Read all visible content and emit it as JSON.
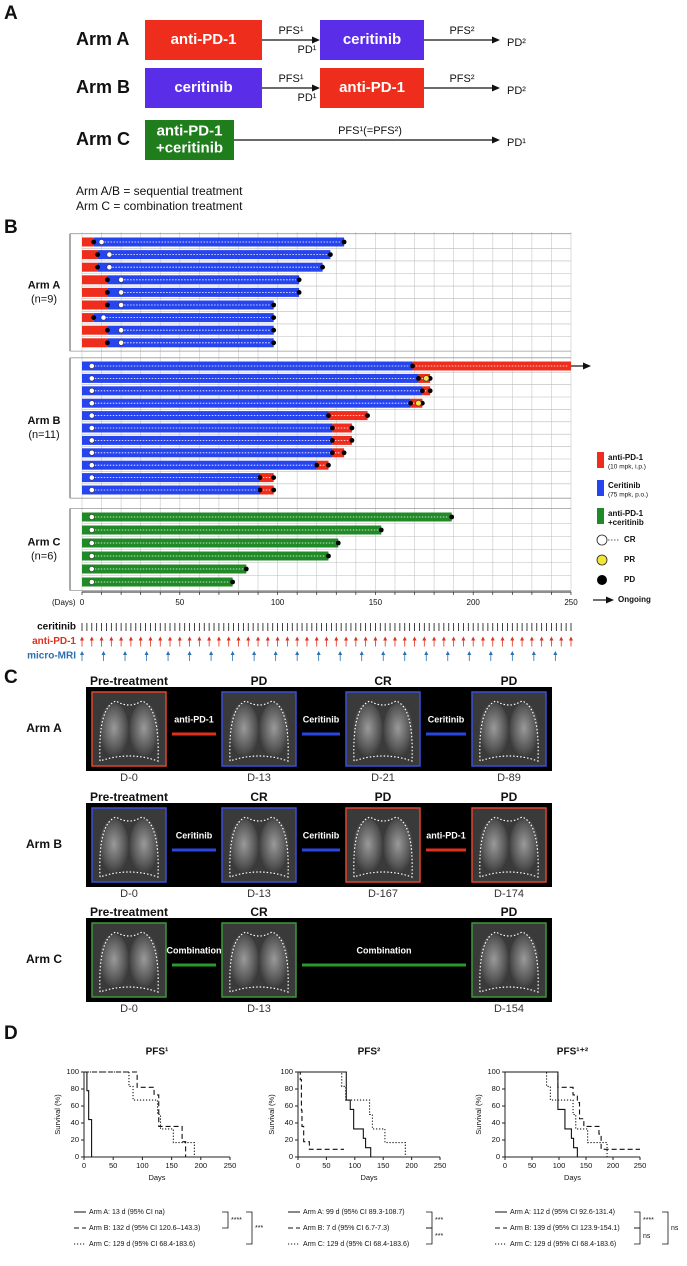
{
  "panel_a": {
    "label": "A",
    "arms": [
      {
        "name": "Arm A",
        "box1": [
          "anti-PD-1"
        ],
        "box1_color": "#ee2d1c",
        "arrow1_above": "PFS¹",
        "arrow1_below": "PD¹",
        "box2": [
          "ceritinib"
        ],
        "box2_color": "#5a2ee8",
        "arrow2_above": "PFS²",
        "end": "PD²"
      },
      {
        "name": "Arm B",
        "box1": [
          "ceritinib"
        ],
        "box1_color": "#5a2ee8",
        "arrow1_above": "PFS¹",
        "arrow1_below": "PD¹",
        "box2": [
          "anti-PD-1"
        ],
        "box2_color": "#ee2d1c",
        "arrow2_above": "PFS²",
        "end": "PD²"
      },
      {
        "name": "Arm C",
        "box1": [
          "anti-PD-1",
          "+ceritinib"
        ],
        "box1_color": "#1f7d1c",
        "arrow1_above": "PFS¹(=PFS²)",
        "end": "PD¹"
      }
    ],
    "notes": [
      "Arm A/B = sequential treatment",
      "Arm C = combination treatment"
    ]
  },
  "panel_b_label": "B",
  "panel_c": {
    "label": "C",
    "arms": [
      {
        "name": "Arm A",
        "frames": [
          {
            "title": "Pre-treatment",
            "day": "D-0",
            "border": "#e0442c"
          },
          {
            "title": "PD",
            "day": "D-13",
            "border": "#3b4fd8"
          },
          {
            "title": "CR",
            "day": "D-21",
            "border": "#3b4fd8"
          },
          {
            "title": "PD",
            "day": "D-89",
            "border": "#3b4fd8"
          }
        ],
        "links": [
          {
            "text": "anti-PD-1",
            "color": "#e0301c"
          },
          {
            "text": "Ceritinib",
            "color": "#2a45e0"
          },
          {
            "text": "Ceritinib",
            "color": "#2a45e0"
          }
        ]
      },
      {
        "name": "Arm B",
        "frames": [
          {
            "title": "Pre-treatment",
            "day": "D-0",
            "border": "#3b4fd8"
          },
          {
            "title": "CR",
            "day": "D-13",
            "border": "#3b4fd8"
          },
          {
            "title": "PD",
            "day": "D-167",
            "border": "#e0442c"
          },
          {
            "title": "PD",
            "day": "D-174",
            "border": "#e0442c"
          }
        ],
        "links": [
          {
            "text": "Ceritinib",
            "color": "#2a45e0"
          },
          {
            "text": "Ceritinib",
            "color": "#2a45e0"
          },
          {
            "text": "anti-PD-1",
            "color": "#e0301c"
          }
        ]
      },
      {
        "name": "Arm C",
        "frames": [
          {
            "title": "Pre-treatment",
            "day": "D-0",
            "border": "#3a9a3a"
          },
          {
            "title": "CR",
            "day": "D-13",
            "border": "#3a9a3a"
          },
          {
            "title": "PD",
            "day": "D-154",
            "border": "#3a9a3a"
          }
        ],
        "links": [
          {
            "text": "Combination",
            "color": "#2a9a2a"
          },
          {
            "text": "Combination",
            "color": "#2a9a2a"
          }
        ]
      }
    ]
  },
  "panel_d_label": "D",
  "chart_data": [
    {
      "type": "swimmer",
      "xlabel": "(Days)",
      "xlim": [
        0,
        250
      ],
      "xticks": [
        0,
        50,
        100,
        150,
        200,
        250
      ],
      "minor_grid": [
        0,
        10,
        20,
        30,
        40,
        50,
        60,
        70,
        80,
        90,
        100,
        110,
        120,
        130,
        140,
        150,
        160,
        170,
        180,
        190,
        200,
        210,
        220,
        230,
        240,
        250
      ],
      "groups": [
        {
          "name": "Arm A",
          "n": "(n=9)",
          "rows": [
            {
              "segments": [
                {
                  "color": "#ee2d1c",
                  "days": 6
                },
                {
                  "color": "#2745ee",
                  "days": 128
                }
              ],
              "cr": 10
            },
            {
              "segments": [
                {
                  "color": "#ee2d1c",
                  "days": 8
                },
                {
                  "color": "#2745ee",
                  "days": 119
                }
              ],
              "cr": 14
            },
            {
              "segments": [
                {
                  "color": "#ee2d1c",
                  "days": 8
                },
                {
                  "color": "#2745ee",
                  "days": 115
                }
              ],
              "cr": 14
            },
            {
              "segments": [
                {
                  "color": "#ee2d1c",
                  "days": 13
                },
                {
                  "color": "#2745ee",
                  "days": 98
                }
              ],
              "cr": 20
            },
            {
              "segments": [
                {
                  "color": "#ee2d1c",
                  "days": 13
                },
                {
                  "color": "#2745ee",
                  "days": 98
                }
              ],
              "cr": 20
            },
            {
              "segments": [
                {
                  "color": "#ee2d1c",
                  "days": 13
                },
                {
                  "color": "#2745ee",
                  "days": 85
                }
              ],
              "cr": 20
            },
            {
              "segments": [
                {
                  "color": "#ee2d1c",
                  "days": 6
                },
                {
                  "color": "#2745ee",
                  "days": 92
                }
              ],
              "cr": 11
            },
            {
              "segments": [
                {
                  "color": "#ee2d1c",
                  "days": 13
                },
                {
                  "color": "#2745ee",
                  "days": 85
                }
              ],
              "cr": 20
            },
            {
              "segments": [
                {
                  "color": "#ee2d1c",
                  "days": 13
                },
                {
                  "color": "#2745ee",
                  "days": 85
                }
              ],
              "cr": 20
            }
          ]
        },
        {
          "name": "Arm B",
          "n": "(n=11)",
          "rows": [
            {
              "segments": [
                {
                  "color": "#2745ee",
                  "days": 169
                },
                {
                  "color": "#ee2d1c",
                  "days": 81
                }
              ],
              "cr": 5,
              "ongoing": true
            },
            {
              "segments": [
                {
                  "color": "#2745ee",
                  "days": 172
                },
                {
                  "color": "#ee2d1c",
                  "days": 6
                }
              ],
              "cr": 5,
              "pr": 176
            },
            {
              "segments": [
                {
                  "color": "#2745ee",
                  "days": 174
                },
                {
                  "color": "#ee2d1c",
                  "days": 4
                }
              ],
              "cr": 5
            },
            {
              "segments": [
                {
                  "color": "#2745ee",
                  "days": 168
                },
                {
                  "color": "#ee2d1c",
                  "days": 6
                }
              ],
              "cr": 5,
              "pr": 172
            },
            {
              "segments": [
                {
                  "color": "#2745ee",
                  "days": 126
                },
                {
                  "color": "#ee2d1c",
                  "days": 20
                }
              ],
              "cr": 5
            },
            {
              "segments": [
                {
                  "color": "#2745ee",
                  "days": 128
                },
                {
                  "color": "#ee2d1c",
                  "days": 10
                }
              ],
              "cr": 5
            },
            {
              "segments": [
                {
                  "color": "#2745ee",
                  "days": 128
                },
                {
                  "color": "#ee2d1c",
                  "days": 10
                }
              ],
              "cr": 5
            },
            {
              "segments": [
                {
                  "color": "#2745ee",
                  "days": 128
                },
                {
                  "color": "#ee2d1c",
                  "days": 6
                }
              ],
              "cr": 5
            },
            {
              "segments": [
                {
                  "color": "#2745ee",
                  "days": 120
                },
                {
                  "color": "#ee2d1c",
                  "days": 6
                }
              ],
              "cr": 5
            },
            {
              "segments": [
                {
                  "color": "#2745ee",
                  "days": 91
                },
                {
                  "color": "#ee2d1c",
                  "days": 7
                }
              ],
              "cr": 5
            },
            {
              "segments": [
                {
                  "color": "#2745ee",
                  "days": 91
                },
                {
                  "color": "#ee2d1c",
                  "days": 7
                }
              ],
              "cr": 5
            }
          ]
        },
        {
          "name": "Arm C",
          "n": "(n=6)",
          "rows": [
            {
              "segments": [
                {
                  "color": "#1f8a26",
                  "days": 189
                }
              ],
              "cr": 5
            },
            {
              "segments": [
                {
                  "color": "#1f8a26",
                  "days": 153
                }
              ],
              "cr": 5
            },
            {
              "segments": [
                {
                  "color": "#1f8a26",
                  "days": 131
                }
              ],
              "cr": 5
            },
            {
              "segments": [
                {
                  "color": "#1f8a26",
                  "days": 126
                }
              ],
              "cr": 5
            },
            {
              "segments": [
                {
                  "color": "#1f8a26",
                  "days": 84
                }
              ],
              "cr": 5
            },
            {
              "segments": [
                {
                  "color": "#1f8a26",
                  "days": 77
                }
              ],
              "cr": 5
            }
          ]
        }
      ],
      "legend": [
        {
          "lines": [
            "anti-PD-1",
            "(10 mpk, i.p.)"
          ],
          "color": "#ee2d1c"
        },
        {
          "lines": [
            "Ceritinib",
            "(75 mpk, p.o.)"
          ],
          "color": "#2745ee"
        },
        {
          "lines": [
            "anti-PD-1",
            "+ceritinib"
          ],
          "color": "#1f8a26"
        }
      ],
      "markers": {
        "cr": "CR",
        "pr": "PR",
        "pd": "PD",
        "ongoing": "Ongoing"
      },
      "schedule": [
        {
          "name": "ceritinib",
          "color": "#111111",
          "every": 2.5
        },
        {
          "name": "anti-PD-1",
          "color": "#e0301c",
          "every": 5
        },
        {
          "name": "micro-MRI",
          "color": "#2a6fb0",
          "every": 11
        }
      ]
    },
    {
      "type": "km",
      "title": "PFS¹",
      "ylabel": "Survival (%)",
      "xlabel": "Days",
      "xlim": [
        0,
        250
      ],
      "xticks": [
        0,
        50,
        100,
        150,
        200,
        250
      ],
      "ylim": [
        0,
        100
      ],
      "yticks": [
        0,
        20,
        40,
        60,
        80,
        100
      ],
      "series": [
        {
          "name": "Arm A: 13 d (95% CI na)",
          "dash": "solid",
          "x": [
            0,
            5,
            5,
            8,
            8,
            13,
            13
          ],
          "values": [
            100,
            100,
            78,
            78,
            44,
            44,
            0
          ]
        },
        {
          "name": "Arm B: 132 d (95% CI 120.6–143.3)",
          "dash": "dashed",
          "x": [
            0,
            91,
            91,
            120,
            120,
            128,
            128,
            168,
            168,
            174,
            174
          ],
          "values": [
            100,
            100,
            82,
            82,
            73,
            73,
            36,
            36,
            18,
            18,
            0
          ]
        },
        {
          "name": "Arm C: 129 d (95% CI 68.4-183.6)",
          "dash": "dotted",
          "x": [
            0,
            77,
            77,
            84,
            84,
            126,
            126,
            131,
            131,
            153,
            153,
            189,
            189
          ],
          "values": [
            100,
            100,
            83,
            83,
            67,
            67,
            50,
            50,
            33,
            33,
            17,
            17,
            0
          ]
        }
      ],
      "significance": [
        "****",
        "***"
      ]
    },
    {
      "type": "km",
      "title": "PFS²",
      "ylabel": "Survival (%)",
      "xlabel": "Days",
      "xlim": [
        0,
        250
      ],
      "xticks": [
        0,
        50,
        100,
        150,
        200,
        250
      ],
      "ylim": [
        0,
        100
      ],
      "yticks": [
        0,
        20,
        40,
        60,
        80,
        100
      ],
      "series": [
        {
          "name": "Arm A: 99 d (95% CI 89.3-108.7)",
          "dash": "solid",
          "x": [
            0,
            85,
            85,
            92,
            92,
            98,
            98,
            115,
            115,
            119,
            119,
            128,
            128
          ],
          "values": [
            100,
            100,
            67,
            67,
            56,
            56,
            33,
            33,
            22,
            22,
            11,
            11,
            0
          ]
        },
        {
          "name": "Arm B: 7 d (95% CI 6.7-7.3)",
          "dash": "dashed",
          "x": [
            0,
            4,
            4,
            6,
            6,
            7,
            7,
            10,
            10,
            20,
            20,
            81
          ],
          "values": [
            100,
            100,
            91,
            91,
            55,
            55,
            36,
            36,
            18,
            18,
            9,
            9
          ]
        },
        {
          "name": "Arm C: 129 d (95% CI 68.4-183.6)",
          "dash": "dotted",
          "x": [
            0,
            77,
            77,
            84,
            84,
            126,
            126,
            131,
            131,
            153,
            153,
            189,
            189
          ],
          "values": [
            100,
            100,
            83,
            83,
            67,
            67,
            50,
            50,
            33,
            33,
            17,
            17,
            0
          ]
        }
      ],
      "significance": [
        "***",
        "***"
      ]
    },
    {
      "type": "km",
      "title": "PFS¹⁺²",
      "ylabel": "Survival (%)",
      "xlabel": "Days",
      "xlim": [
        0,
        250
      ],
      "xticks": [
        0,
        50,
        100,
        150,
        200,
        250
      ],
      "ylim": [
        0,
        100
      ],
      "yticks": [
        0,
        20,
        40,
        60,
        80,
        100
      ],
      "series": [
        {
          "name": "Arm A: 112 d (95% CI 92.6-131.4)",
          "dash": "solid",
          "x": [
            0,
            98,
            98,
            111,
            111,
            123,
            123,
            127,
            127,
            134,
            134
          ],
          "values": [
            100,
            100,
            56,
            56,
            33,
            33,
            22,
            22,
            11,
            11,
            0
          ]
        },
        {
          "name": "Arm B: 139 d (95% CI 123.9-154.1)",
          "dash": "dashed",
          "x": [
            0,
            98,
            98,
            126,
            126,
            134,
            134,
            138,
            138,
            146,
            146,
            174,
            174,
            178,
            178,
            250
          ],
          "values": [
            100,
            100,
            82,
            82,
            73,
            73,
            64,
            64,
            45,
            45,
            36,
            36,
            27,
            27,
            9,
            9
          ]
        },
        {
          "name": "Arm C: 129 d (95% CI 68.4-183.6)",
          "dash": "dotted",
          "x": [
            0,
            77,
            77,
            84,
            84,
            126,
            126,
            131,
            131,
            153,
            153,
            189,
            189
          ],
          "values": [
            100,
            100,
            83,
            83,
            67,
            67,
            50,
            50,
            33,
            33,
            17,
            17,
            0
          ]
        }
      ],
      "significance": [
        "****",
        "ns",
        "ns"
      ]
    }
  ]
}
